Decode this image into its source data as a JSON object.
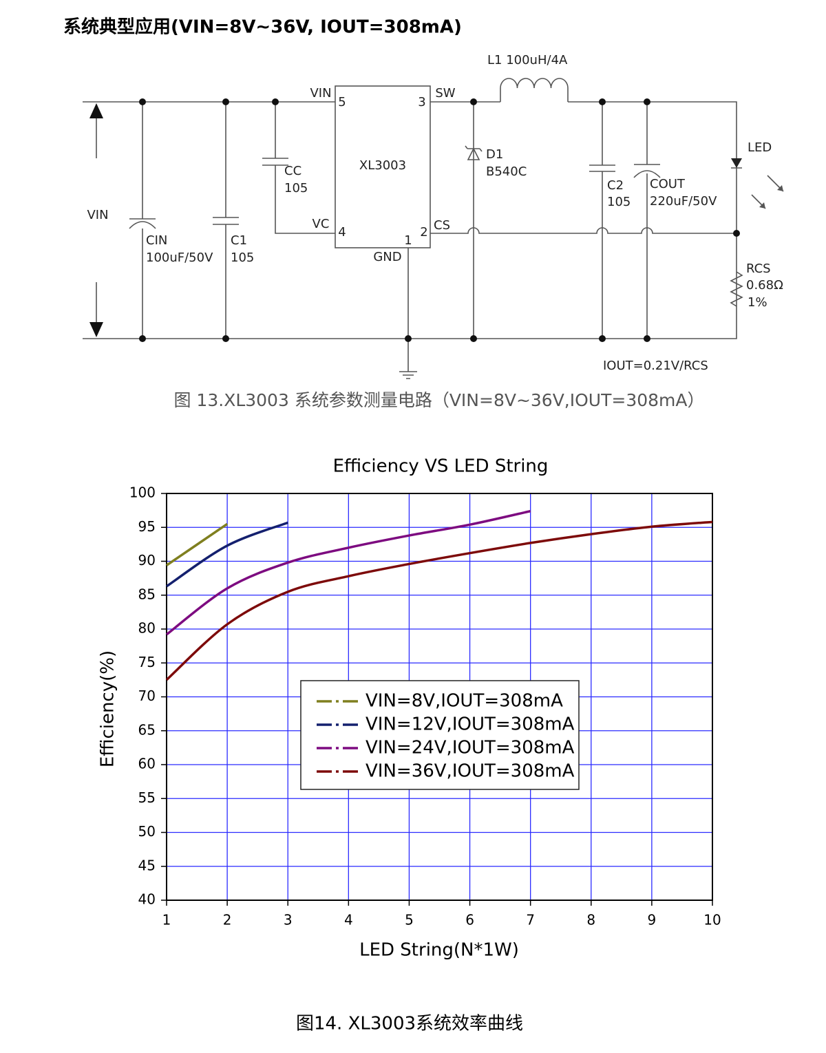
{
  "header": {
    "title": "系统典型应用(VIN=8V~36V, IOUT=308mA)"
  },
  "circuit": {
    "labels": [
      "VIN",
      "VIN",
      "5",
      "3",
      "SW",
      "XL3003",
      "VC",
      "4",
      "2",
      "CS",
      "1",
      "GND",
      "CC",
      "105",
      "CIN",
      "100uF/50V",
      "C1",
      "105",
      "L1 100uH/4A",
      "D1",
      "B540C",
      "C2",
      "105",
      "COUT",
      "220uF/50V",
      "LED",
      "RCS",
      "0.68Ω",
      "1%",
      "IOUT=0.21V/RCS"
    ],
    "caption": "图 13.XL3003 系统参数测量电路（VIN=8V~36V,IOUT=308mA）"
  },
  "chart_data": {
    "type": "line",
    "title": "Efficiency VS LED String",
    "x_label": "LED String(N*1W)",
    "y_label": "Efficiency(%)",
    "xlim": [
      1,
      10
    ],
    "ylim": [
      40,
      100
    ],
    "xticks": [
      1,
      2,
      3,
      4,
      5,
      6,
      7,
      8,
      9,
      10
    ],
    "yticks": [
      40,
      45,
      50,
      55,
      60,
      65,
      70,
      75,
      80,
      85,
      90,
      95,
      100
    ],
    "grid": true,
    "grid_color": "#2a2aff",
    "series": [
      {
        "name": "VIN=8V,IOUT=308mA",
        "color": "#7f7f1f",
        "x": [
          1,
          2
        ],
        "values": [
          89.4,
          95.5
        ]
      },
      {
        "name": "VIN=12V,IOUT=308mA",
        "color": "#14206e",
        "x": [
          1,
          2,
          3
        ],
        "values": [
          86.3,
          92.3,
          95.7
        ]
      },
      {
        "name": "VIN=24V,IOUT=308mA",
        "color": "#7d0b80",
        "x": [
          1,
          2,
          3,
          4,
          5,
          6,
          7
        ],
        "values": [
          79.2,
          86,
          89.8,
          92,
          93.8,
          95.4,
          97.4
        ]
      },
      {
        "name": "VIN=36V,IOUT=308mA",
        "color": "#7d0a0a",
        "x": [
          1,
          2,
          3,
          4,
          5,
          6,
          7,
          8,
          9,
          10
        ],
        "values": [
          72.5,
          80.7,
          85.5,
          87.8,
          89.6,
          91.2,
          92.7,
          94,
          95.1,
          95.8
        ]
      }
    ]
  },
  "footer": {
    "caption": "图14. XL3003系统效率曲线"
  }
}
